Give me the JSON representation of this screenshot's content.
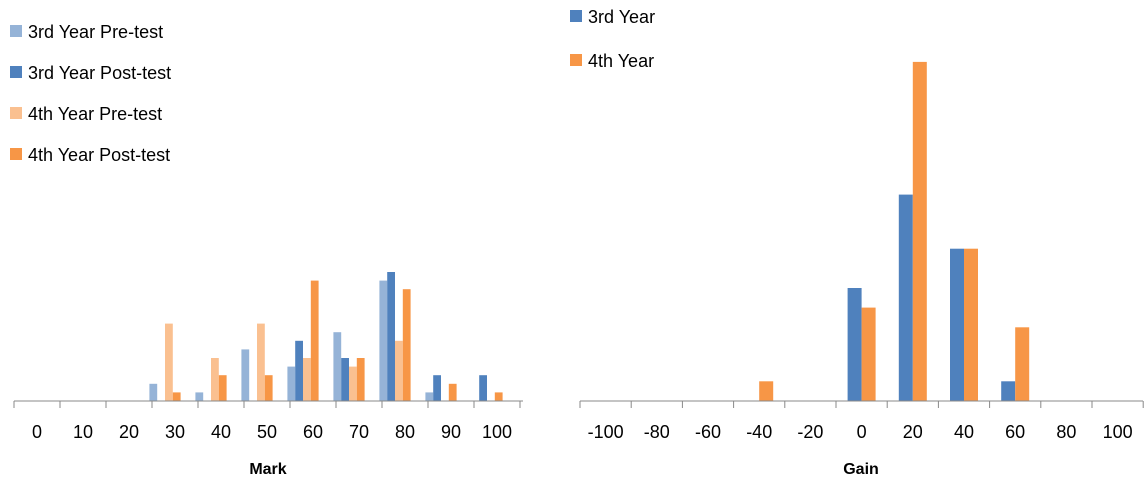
{
  "chart_data": [
    {
      "type": "bar",
      "title": "",
      "xlabel": "Mark",
      "ylabel": "",
      "categories": [
        "0",
        "10",
        "20",
        "30",
        "40",
        "50",
        "60",
        "70",
        "80",
        "90",
        "100"
      ],
      "legend_position": "top-left",
      "grid": false,
      "y_axis_visible": false,
      "ylim": [
        0,
        0.4
      ],
      "series": [
        {
          "name": "3rd Year Pre-test",
          "color": "#95b3d7",
          "values": [
            0,
            0,
            0,
            0.02,
            0.01,
            0.06,
            0.04,
            0.08,
            0.14,
            0.01,
            0
          ]
        },
        {
          "name": "3rd Year Post-test",
          "color": "#4f81bd",
          "values": [
            0,
            0,
            0,
            0,
            0,
            0,
            0.07,
            0.05,
            0.15,
            0.03,
            0.03
          ]
        },
        {
          "name": "4th Year Pre-test",
          "color": "#fac090",
          "values": [
            0,
            0,
            0,
            0.09,
            0.05,
            0.09,
            0.05,
            0.04,
            0.07,
            0,
            0
          ]
        },
        {
          "name": "4th Year Post-test",
          "color": "#f79646",
          "values": [
            0,
            0,
            0,
            0.01,
            0.03,
            0.03,
            0.14,
            0.05,
            0.13,
            0.02,
            0.01
          ]
        }
      ]
    },
    {
      "type": "bar",
      "title": "",
      "xlabel": "Gain",
      "ylabel": "",
      "categories": [
        "-100",
        "-80",
        "-60",
        "-40",
        "-20",
        "0",
        "20",
        "40",
        "60",
        "80",
        "100"
      ],
      "legend_position": "top-left",
      "grid": false,
      "y_axis_visible": false,
      "ylim": [
        0,
        0.7
      ],
      "series": [
        {
          "name": "3rd Year",
          "color": "#4f81bd",
          "values": [
            0,
            0,
            0,
            0,
            0,
            0.23,
            0.42,
            0.31,
            0.04,
            0,
            0
          ]
        },
        {
          "name": "4th Year",
          "color": "#f79646",
          "values": [
            0,
            0,
            0,
            0.04,
            0,
            0.19,
            0.69,
            0.31,
            0.15,
            0,
            0
          ]
        }
      ]
    }
  ]
}
